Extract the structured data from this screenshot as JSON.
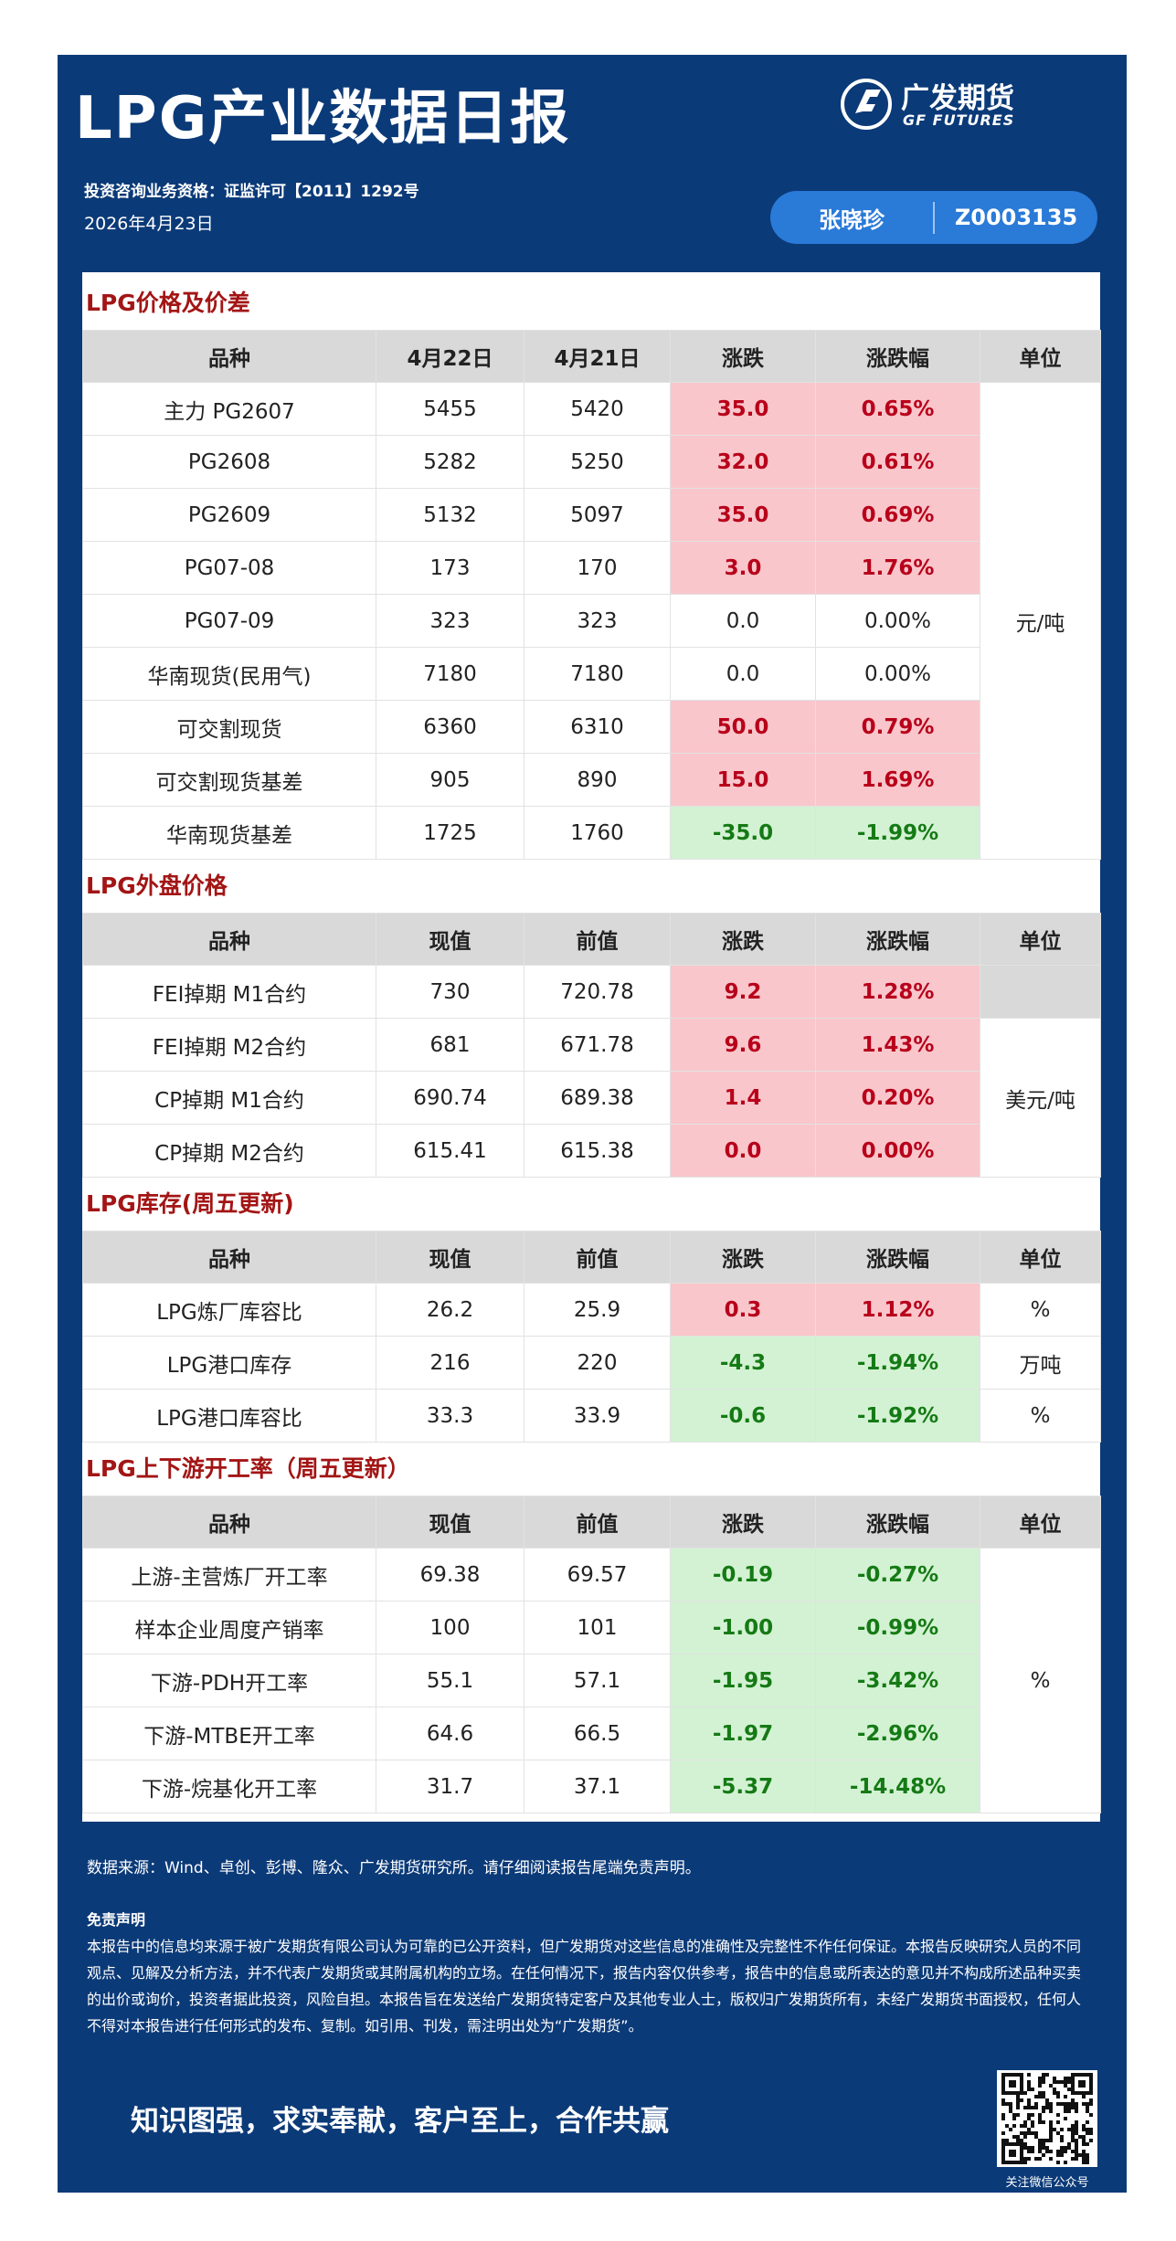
{
  "header": {
    "title": "LPG产业数据日报",
    "logo_cn": "广发期货",
    "logo_en": "GF FUTURES",
    "license": "投资咨询业务资格：证监许可【2011】1292号",
    "date": "2026年4月23日",
    "analyst": "张晓珍",
    "analyst_id": "Z0003135"
  },
  "sections": [
    {
      "title": "LPG价格及价差",
      "header": [
        "品种",
        "4月22日",
        "4月21日",
        "涨跌",
        "涨跌幅",
        "单位"
      ],
      "unit": "元/吨",
      "rows": [
        {
          "cells": [
            "主力 PG2607",
            "5455",
            "5420",
            "35.0",
            "0.65%"
          ],
          "tone": "up"
        },
        {
          "cells": [
            "PG2608",
            "5282",
            "5250",
            "32.0",
            "0.61%"
          ],
          "tone": "up"
        },
        {
          "cells": [
            "PG2609",
            "5132",
            "5097",
            "35.0",
            "0.69%"
          ],
          "tone": "up"
        },
        {
          "cells": [
            "PG07-08",
            "173",
            "170",
            "3.0",
            "1.76%"
          ],
          "tone": "up"
        },
        {
          "cells": [
            "PG07-09",
            "323",
            "323",
            "0.0",
            "0.00%"
          ],
          "tone": "flat"
        },
        {
          "cells": [
            "华南现货(民用气)",
            "7180",
            "7180",
            "0.0",
            "0.00%"
          ],
          "tone": "flat"
        },
        {
          "cells": [
            "可交割现货",
            "6360",
            "6310",
            "50.0",
            "0.79%"
          ],
          "tone": "up"
        },
        {
          "cells": [
            "可交割现货基差",
            "905",
            "890",
            "15.0",
            "1.69%"
          ],
          "tone": "up"
        },
        {
          "cells": [
            "华南现货基差",
            "1725",
            "1760",
            "-35.0",
            "-1.99%"
          ],
          "tone": "down"
        }
      ]
    },
    {
      "title": "LPG外盘价格",
      "header": [
        "品种",
        "现值",
        "前值",
        "涨跌",
        "涨跌幅",
        "单位"
      ],
      "unit": "美元/吨",
      "rows": [
        {
          "cells": [
            "FEI掉期 M1合约",
            "730",
            "720.78",
            "9.2",
            "1.28%"
          ],
          "tone": "up"
        },
        {
          "cells": [
            "FEI掉期 M2合约",
            "681",
            "671.78",
            "9.6",
            "1.43%"
          ],
          "tone": "up"
        },
        {
          "cells": [
            "CP掉期 M1合约",
            "690.74",
            "689.38",
            "1.4",
            "0.20%"
          ],
          "tone": "up"
        },
        {
          "cells": [
            "CP掉期 M2合约",
            "615.41",
            "615.38",
            "0.0",
            "0.00%"
          ],
          "tone": "up"
        }
      ]
    },
    {
      "title": "LPG库存(周五更新)",
      "header": [
        "品种",
        "现值",
        "前值",
        "涨跌",
        "涨跌幅",
        "单位"
      ],
      "rows": [
        {
          "cells": [
            "LPG炼厂库容比",
            "26.2",
            "25.9",
            "0.3",
            "1.12%"
          ],
          "tone": "up",
          "unit": "%"
        },
        {
          "cells": [
            "LPG港口库存",
            "216",
            "220",
            "-4.3",
            "-1.94%"
          ],
          "tone": "down",
          "unit": "万吨"
        },
        {
          "cells": [
            "LPG港口库容比",
            "33.3",
            "33.9",
            "-0.6",
            "-1.92%"
          ],
          "tone": "down",
          "unit": "%"
        }
      ]
    },
    {
      "title": "LPG上下游开工率（周五更新）",
      "header": [
        "品种",
        "现值",
        "前值",
        "涨跌",
        "涨跌幅",
        "单位"
      ],
      "unit": "%",
      "rows": [
        {
          "cells": [
            "上游-主营炼厂开工率",
            "69.38",
            "69.57",
            "-0.19",
            "-0.27%"
          ],
          "tone": "down"
        },
        {
          "cells": [
            "样本企业周度产销率",
            "100",
            "101",
            "-1.00",
            "-0.99%"
          ],
          "tone": "down"
        },
        {
          "cells": [
            "下游-PDH开工率",
            "55.1",
            "57.1",
            "-1.95",
            "-3.42%"
          ],
          "tone": "down"
        },
        {
          "cells": [
            "下游-MTBE开工率",
            "64.6",
            "66.5",
            "-1.97",
            "-2.96%"
          ],
          "tone": "down"
        },
        {
          "cells": [
            "下游-烷基化开工率",
            "31.7",
            "37.1",
            "-5.37",
            "-14.48%"
          ],
          "tone": "down"
        }
      ]
    }
  ],
  "footer": {
    "source": "数据来源：Wind、卓创、彭博、隆众、广发期货研究所。请仔细阅读报告尾端免责声明。",
    "disclaimer_title": "免责声明",
    "disclaimer": "本报告中的信息均来源于被广发期货有限公司认为可靠的已公开资料，但广发期货对这些信息的准确性及完整性不作任何保证。本报告反映研究人员的不同观点、见解及分析方法，并不代表广发期货或其附属机构的立场。在任何情况下，报告内容仅供参考，报告中的信息或所表达的意见并不构成所述品种买卖的出价或询价，投资者据此投资，风险自担。本报告旨在发送给广发期货特定客户及其他专业人士，版权归广发期货所有，未经广发期货书面授权，任何人不得对本报告进行任何形式的发布、复制。如引用、刊发，需注明出处为“广发期货”。",
    "slogan": "知识图强，求实奉献，客户至上，合作共赢",
    "qr_caption": "关注微信公众号"
  }
}
